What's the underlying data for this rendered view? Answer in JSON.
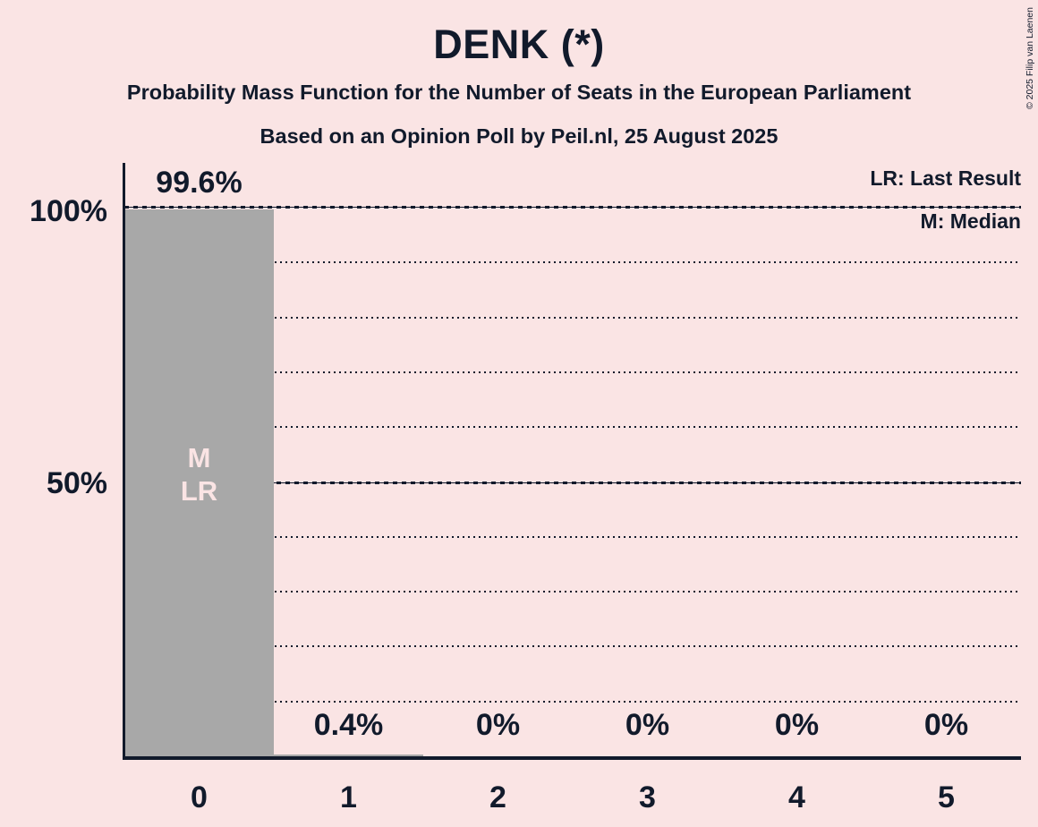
{
  "header": {
    "title": "DENK (*)",
    "subtitle": "Probability Mass Function for the Number of Seats in the European Parliament",
    "note": "Based on an Opinion Poll by Peil.nl, 25 August 2025"
  },
  "legend": {
    "lr": "LR: Last Result",
    "m": "M: Median"
  },
  "copyright": "© 2025 Filip van Laenen",
  "colors": {
    "background": "#FAE4E4",
    "bar": "#A8A8A8",
    "text": "#111A2B",
    "bar_annotation": "#FAE4E4"
  },
  "chart_data": {
    "type": "bar",
    "title": "DENK (*)",
    "subtitle": "Probability Mass Function for the Number of Seats in the European Parliament",
    "source_note": "Based on an Opinion Poll by Peil.nl, 25 August 2025",
    "categories": [
      "0",
      "1",
      "2",
      "3",
      "4",
      "5"
    ],
    "values": [
      99.6,
      0.4,
      0,
      0,
      0,
      0
    ],
    "value_labels": [
      "99.6%",
      "0.4%",
      "0%",
      "0%",
      "0%",
      "0%"
    ],
    "xlabel": "",
    "ylabel": "",
    "ylim": [
      0,
      100
    ],
    "ytick_labels": [
      {
        "value": 100,
        "label": "100%"
      },
      {
        "value": 50,
        "label": "50%"
      }
    ],
    "grid": "dotted horizontal lines every 10%, solid dashed lines at 50% and 100%",
    "legend_entries": [
      "LR: Last Result",
      "M: Median"
    ],
    "legend_position": "top-right",
    "bar_annotations": [
      {
        "category": "0",
        "lines": [
          "M",
          "LR"
        ]
      }
    ]
  }
}
